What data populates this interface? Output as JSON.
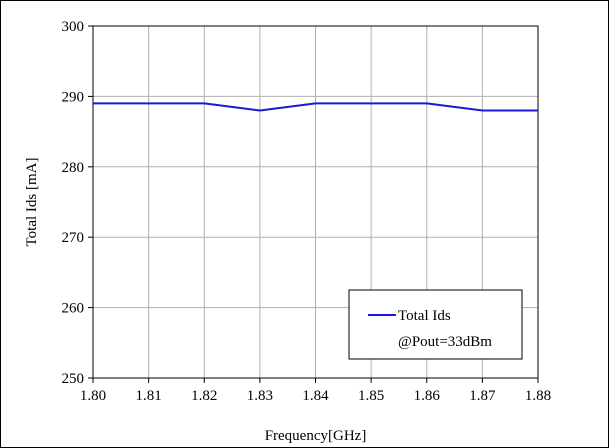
{
  "chart_data": {
    "type": "line",
    "title": "",
    "xlabel": "Frequency[GHz]",
    "ylabel": "Total Ids [mA]",
    "xlim": [
      1.8,
      1.88
    ],
    "ylim": [
      250,
      300
    ],
    "x_ticks": [
      "1.80",
      "1.81",
      "1.82",
      "1.83",
      "1.84",
      "1.85",
      "1.86",
      "1.87",
      "1.88"
    ],
    "y_ticks": [
      "250",
      "260",
      "270",
      "280",
      "290",
      "300"
    ],
    "grid": true,
    "legend": {
      "placement": "bottom-right",
      "entries": [
        {
          "line1": "Total Ids",
          "line2": "@Pout=33dBm",
          "color": "#1a1ad6"
        }
      ]
    },
    "series": [
      {
        "name": "Total Ids",
        "color": "#1a1ad6",
        "x": [
          1.8,
          1.81,
          1.82,
          1.83,
          1.84,
          1.85,
          1.86,
          1.87,
          1.88
        ],
        "y": [
          289,
          289,
          289,
          288,
          289,
          289,
          289,
          288,
          288
        ]
      }
    ]
  }
}
